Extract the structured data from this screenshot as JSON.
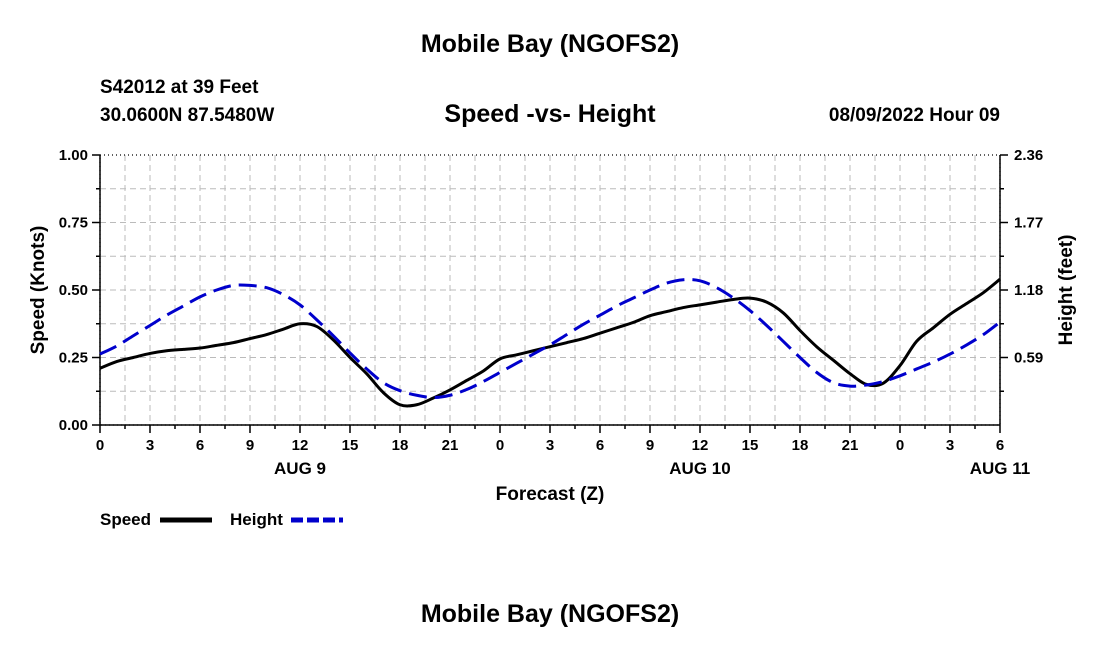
{
  "header": {
    "title": "Mobile Bay (NGOFS2)",
    "station": "S42012 at 39 Feet",
    "coords": "30.0600N  87.5480W",
    "datetime": "08/09/2022 Hour 09"
  },
  "footer": {
    "title": "Mobile Bay (NGOFS2)"
  },
  "colors": {
    "speed": "#000000",
    "height": "#0000cc",
    "grid": "#bbbbbb"
  },
  "chart_data": {
    "type": "line",
    "title": "Speed -vs- Height",
    "xlabel": "Forecast (Z)",
    "ylabel": "Speed (Knots)",
    "y2label": "Height (feet)",
    "x_ticks": [
      "0",
      "3",
      "6",
      "9",
      "12",
      "15",
      "18",
      "21",
      "0",
      "3",
      "6",
      "9",
      "12",
      "15",
      "18",
      "21",
      "0",
      "3",
      "6"
    ],
    "day_labels": [
      {
        "label": "AUG 9",
        "hour": 12
      },
      {
        "label": "AUG 10",
        "hour": 36
      },
      {
        "label": "AUG 11",
        "hour": 54
      }
    ],
    "xlim": [
      0,
      54
    ],
    "ylim": [
      0,
      1.0
    ],
    "y_ticks": [
      "0.00",
      "0.25",
      "0.50",
      "0.75",
      "1.00"
    ],
    "y2lim": [
      0,
      2.36
    ],
    "y2_ticks": [
      "0.59",
      "1.18",
      "1.77",
      "2.36"
    ],
    "series": [
      {
        "name": "Speed",
        "axis": "left",
        "style": "solid",
        "x": [
          0,
          1,
          2,
          3,
          4,
          5,
          6,
          7,
          8,
          9,
          10,
          11,
          12,
          13,
          14,
          15,
          16,
          17,
          18,
          19,
          20,
          21,
          22,
          23,
          24,
          25,
          26,
          27,
          28,
          29,
          30,
          31,
          32,
          33,
          34,
          35,
          36,
          37,
          38,
          39,
          40,
          41,
          42,
          43,
          44,
          45,
          46,
          47,
          48,
          49,
          50,
          51,
          52,
          53,
          54
        ],
        "values": [
          0.21,
          0.235,
          0.25,
          0.265,
          0.275,
          0.28,
          0.285,
          0.295,
          0.305,
          0.32,
          0.335,
          0.355,
          0.375,
          0.365,
          0.315,
          0.25,
          0.19,
          0.12,
          0.075,
          0.075,
          0.1,
          0.13,
          0.165,
          0.2,
          0.245,
          0.26,
          0.275,
          0.29,
          0.305,
          0.32,
          0.34,
          0.36,
          0.38,
          0.405,
          0.42,
          0.435,
          0.445,
          0.455,
          0.465,
          0.47,
          0.455,
          0.415,
          0.35,
          0.29,
          0.24,
          0.19,
          0.15,
          0.155,
          0.22,
          0.31,
          0.36,
          0.41,
          0.45,
          0.49,
          0.54
        ]
      },
      {
        "name": "Height",
        "axis": "right",
        "style": "dashed",
        "x": [
          0,
          1,
          2,
          3,
          4,
          5,
          6,
          7,
          8,
          9,
          10,
          11,
          12,
          13,
          14,
          15,
          16,
          17,
          18,
          19,
          20,
          21,
          22,
          23,
          24,
          25,
          26,
          27,
          28,
          29,
          30,
          31,
          32,
          33,
          34,
          35,
          36,
          37,
          38,
          39,
          40,
          41,
          42,
          43,
          44,
          45,
          46,
          47,
          48,
          49,
          50,
          51,
          52,
          53,
          54
        ],
        "values": [
          0.62,
          0.69,
          0.78,
          0.87,
          0.96,
          1.04,
          1.12,
          1.18,
          1.22,
          1.22,
          1.2,
          1.14,
          1.05,
          0.92,
          0.78,
          0.63,
          0.49,
          0.37,
          0.3,
          0.26,
          0.24,
          0.26,
          0.31,
          0.38,
          0.46,
          0.54,
          0.62,
          0.7,
          0.79,
          0.88,
          0.96,
          1.04,
          1.11,
          1.18,
          1.24,
          1.27,
          1.26,
          1.2,
          1.11,
          1.0,
          0.87,
          0.73,
          0.59,
          0.46,
          0.37,
          0.34,
          0.35,
          0.38,
          0.43,
          0.49,
          0.55,
          0.62,
          0.7,
          0.79,
          0.9
        ]
      }
    ]
  },
  "legend": [
    {
      "label": "Speed",
      "style": "solid"
    },
    {
      "label": "Height",
      "style": "dashed"
    }
  ]
}
